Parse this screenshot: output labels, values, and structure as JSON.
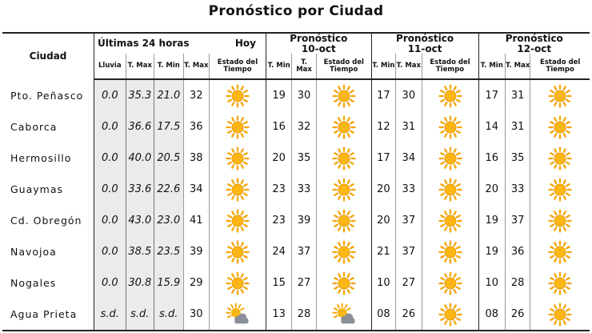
{
  "title": "Pronóstico por Ciudad",
  "headers": {
    "city": "Ciudad",
    "last24": "Últimas 24 horas",
    "today": "Hoy",
    "forecast": "Pronóstico",
    "day1": "10-oct",
    "day2": "11-oct",
    "day3": "12-oct",
    "lluvia": "Lluvia",
    "tmax": "T. Max",
    "tmin": "T. Min",
    "estado": "Estado del Tiempo"
  },
  "rows": [
    {
      "city": "Pto. Peñasco",
      "lluvia": "0.0",
      "tmax": "35.3",
      "tmin": "21.0",
      "hoy_max": "32",
      "hoy_icon": "sun-icon",
      "d1_min": "19",
      "d1_max": "30",
      "d1_icon": "sun-icon",
      "d2_min": "17",
      "d2_max": "30",
      "d2_icon": "sun-icon",
      "d3_min": "17",
      "d3_max": "31",
      "d3_icon": "sun-icon"
    },
    {
      "city": "Caborca",
      "lluvia": "0.0",
      "tmax": "36.6",
      "tmin": "17.5",
      "hoy_max": "36",
      "hoy_icon": "sun-icon",
      "d1_min": "16",
      "d1_max": "32",
      "d1_icon": "sun-icon",
      "d2_min": "12",
      "d2_max": "31",
      "d2_icon": "sun-icon",
      "d3_min": "14",
      "d3_max": "31",
      "d3_icon": "sun-icon"
    },
    {
      "city": "Hermosillo",
      "lluvia": "0.0",
      "tmax": "40.0",
      "tmin": "20.5",
      "hoy_max": "38",
      "hoy_icon": "sun-icon",
      "d1_min": "20",
      "d1_max": "35",
      "d1_icon": "sun-icon",
      "d2_min": "17",
      "d2_max": "34",
      "d2_icon": "sun-icon",
      "d3_min": "16",
      "d3_max": "35",
      "d3_icon": "sun-icon"
    },
    {
      "city": "Guaymas",
      "lluvia": "0.0",
      "tmax": "33.6",
      "tmin": "22.6",
      "hoy_max": "34",
      "hoy_icon": "sun-icon",
      "d1_min": "23",
      "d1_max": "33",
      "d1_icon": "sun-icon",
      "d2_min": "20",
      "d2_max": "33",
      "d2_icon": "sun-icon",
      "d3_min": "20",
      "d3_max": "33",
      "d3_icon": "sun-icon"
    },
    {
      "city": "Cd. Obregón",
      "lluvia": "0.0",
      "tmax": "43.0",
      "tmin": "23.0",
      "hoy_max": "41",
      "hoy_icon": "sun-icon",
      "d1_min": "23",
      "d1_max": "39",
      "d1_icon": "sun-icon",
      "d2_min": "20",
      "d2_max": "37",
      "d2_icon": "sun-icon",
      "d3_min": "19",
      "d3_max": "37",
      "d3_icon": "sun-icon"
    },
    {
      "city": "Navojoa",
      "lluvia": "0.0",
      "tmax": "38.5",
      "tmin": "23.5",
      "hoy_max": "39",
      "hoy_icon": "sun-icon",
      "d1_min": "24",
      "d1_max": "37",
      "d1_icon": "sun-icon",
      "d2_min": "21",
      "d2_max": "37",
      "d2_icon": "sun-icon",
      "d3_min": "19",
      "d3_max": "36",
      "d3_icon": "sun-icon"
    },
    {
      "city": "Nogales",
      "lluvia": "0.0",
      "tmax": "30.8",
      "tmin": "15.9",
      "hoy_max": "29",
      "hoy_icon": "sun-icon",
      "d1_min": "15",
      "d1_max": "27",
      "d1_icon": "sun-icon",
      "d2_min": "10",
      "d2_max": "27",
      "d2_icon": "sun-icon",
      "d3_min": "10",
      "d3_max": "28",
      "d3_icon": "sun-icon"
    },
    {
      "city": "Agua Prieta",
      "lluvia": "s.d.",
      "tmax": "s.d.",
      "tmin": "s.d.",
      "hoy_max": "30",
      "hoy_icon": "partly-cloudy-icon",
      "d1_min": "13",
      "d1_max": "28",
      "d1_icon": "partly-cloudy-icon",
      "d2_min": "08",
      "d2_max": "26",
      "d2_icon": "sun-icon",
      "d3_min": "08",
      "d3_max": "26",
      "d3_icon": "sun-icon"
    }
  ],
  "colors": {
    "sun": "#f5a300",
    "sun_core": "#fbb514",
    "cloud": "#8a8f99",
    "shade": "#ebebeb"
  }
}
